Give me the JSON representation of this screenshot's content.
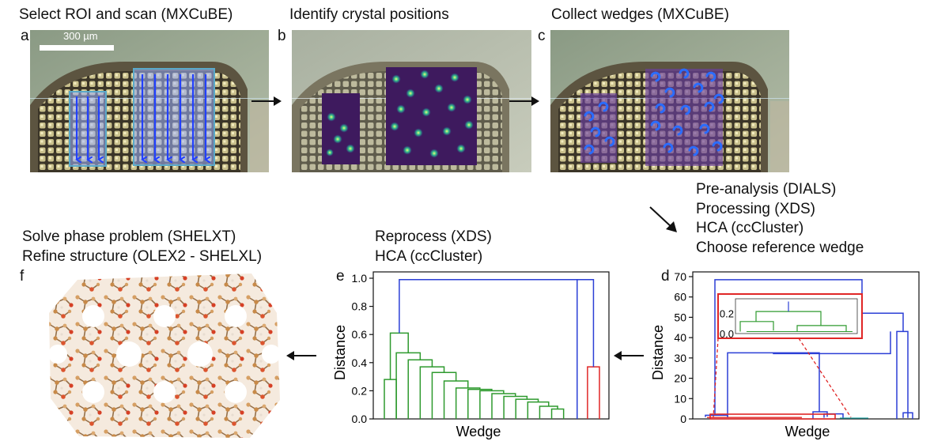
{
  "panels": {
    "a": {
      "letter": "a",
      "title": "Select ROI and scan (MXCuBE)",
      "scalebar": "300 µm"
    },
    "b": {
      "letter": "b",
      "title": "Identify crystal positions"
    },
    "c": {
      "letter": "c",
      "title": "Collect wedges (MXCuBE)"
    },
    "d": {
      "letter": "d",
      "steps": [
        "Pre-analysis (DIALS)",
        "Processing (XDS)",
        "HCA (ccCluster)",
        "Choose reference wedge"
      ]
    },
    "e": {
      "letter": "e",
      "steps": [
        "Reprocess (XDS)",
        "HCA (ccCluster)"
      ]
    },
    "f": {
      "letter": "f",
      "steps": [
        "Solve phase problem  (SHELXT)",
        "Refine structure (OLEX2 - SHELXL)"
      ]
    }
  },
  "colors": {
    "tree_blue": "#2b3fd6",
    "tree_green": "#2e9a2e",
    "tree_red": "#e02626",
    "tree_teal": "#20a0a0",
    "scan_arrow": "#2240ff",
    "roi_border": "#5aa9c9"
  },
  "chart_data": [
    {
      "id": "d",
      "type": "dendrogram",
      "xlabel": "Wedge",
      "ylabel": "Distance",
      "ylim": [
        0,
        70
      ],
      "yticks": [
        0,
        10,
        20,
        30,
        40,
        50,
        60,
        70
      ],
      "merges": [
        {
          "height": 68.5,
          "color": "blue"
        },
        {
          "height": 52,
          "color": "blue"
        },
        {
          "height": 43,
          "color": "blue"
        },
        {
          "height": 32.5,
          "color": "blue"
        },
        {
          "height": 3.5,
          "color": "blue"
        },
        {
          "height": 2.5,
          "color": "blue"
        }
      ],
      "inset": {
        "ylim": [
          0,
          0.3
        ],
        "yticks": [
          "0.0",
          "0.2"
        ]
      }
    },
    {
      "id": "e",
      "type": "dendrogram",
      "xlabel": "Wedge",
      "ylabel": "Distance",
      "ylim": [
        0,
        1.0
      ],
      "yticks": [
        "0.0",
        "0.2",
        "0.4",
        "0.6",
        "0.8",
        "1.0"
      ],
      "root_height": 0.99,
      "blue_branch_height": 0.99,
      "red_cluster_height": 0.37,
      "green_cluster": [
        {
          "height": 0.61
        },
        {
          "height": 0.28
        },
        {
          "height": 0.47
        },
        {
          "height": 0.42
        },
        {
          "height": 0.37
        },
        {
          "height": 0.33
        },
        {
          "height": 0.27
        },
        {
          "height": 0.22
        },
        {
          "height": 0.21
        },
        {
          "height": 0.2
        },
        {
          "height": 0.18
        },
        {
          "height": 0.16
        },
        {
          "height": 0.14
        },
        {
          "height": 0.12
        },
        {
          "height": 0.09
        },
        {
          "height": 0.07
        }
      ]
    }
  ]
}
